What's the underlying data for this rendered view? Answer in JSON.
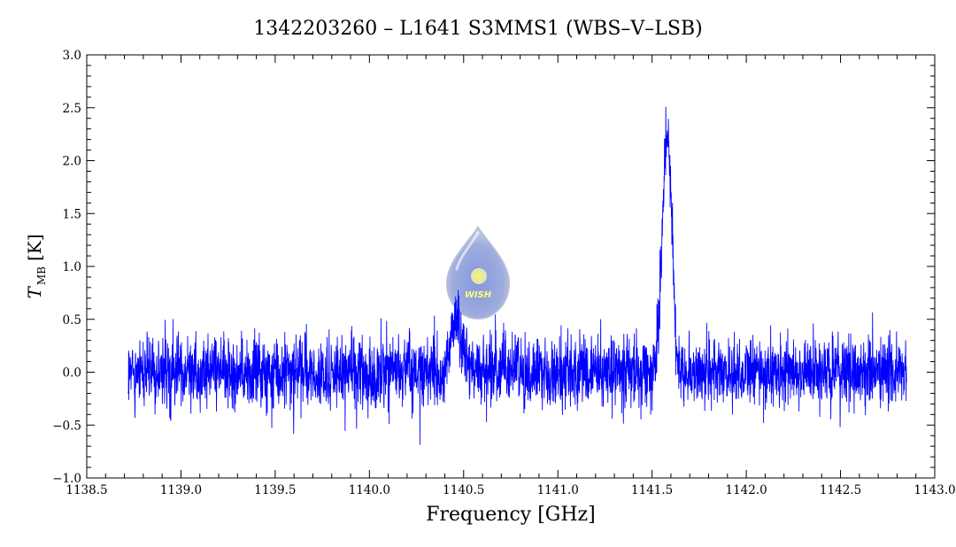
{
  "chart_data": {
    "type": "line",
    "title": "1342203260 – L1641 S3MMS1 (WBS–V–LSB)",
    "xlabel": "Frequency [GHz]",
    "ylabel_main": "T",
    "ylabel_sub": "MB",
    "ylabel_unit": "[K]",
    "xlim": [
      1138.5,
      1143.0
    ],
    "ylim": [
      -1.0,
      3.0
    ],
    "x_ticks": [
      "1138.5",
      "1139.0",
      "1139.5",
      "1140.0",
      "1140.5",
      "1141.0",
      "1141.5",
      "1142.0",
      "1142.5",
      "1143.0"
    ],
    "y_ticks": [
      "−1.0",
      "−0.5",
      "0.0",
      "0.5",
      "1.0",
      "1.5",
      "2.0",
      "2.5",
      "3.0"
    ],
    "series": [
      {
        "color": "#0000ff",
        "x_range": [
          1138.72,
          1142.85
        ],
        "noise_rms": 0.16,
        "features": [
          {
            "center": 1140.46,
            "peak": 0.48,
            "width": 0.03
          },
          {
            "center": 1141.58,
            "peak": 2.3,
            "width": 0.025
          }
        ],
        "x": [
          1138.72,
          1138.9,
          1139.0,
          1139.2,
          1139.5,
          1139.8,
          1140.0,
          1140.3,
          1140.4,
          1140.44,
          1140.46,
          1140.5,
          1140.55,
          1140.7,
          1141.0,
          1141.3,
          1141.45,
          1141.52,
          1141.55,
          1141.58,
          1141.6,
          1141.63,
          1141.68,
          1141.8,
          1142.0,
          1142.3,
          1142.6,
          1142.85
        ],
        "y": [
          0.0,
          0.0,
          0.0,
          0.0,
          0.0,
          0.0,
          0.0,
          0.0,
          0.15,
          0.45,
          0.5,
          0.35,
          0.0,
          0.0,
          0.0,
          0.0,
          0.1,
          0.5,
          1.3,
          2.3,
          1.8,
          0.7,
          0.1,
          0.0,
          0.0,
          0.0,
          0.0,
          0.0
        ]
      }
    ],
    "logo": {
      "text": "WISH",
      "color": "#7f97d6"
    }
  }
}
